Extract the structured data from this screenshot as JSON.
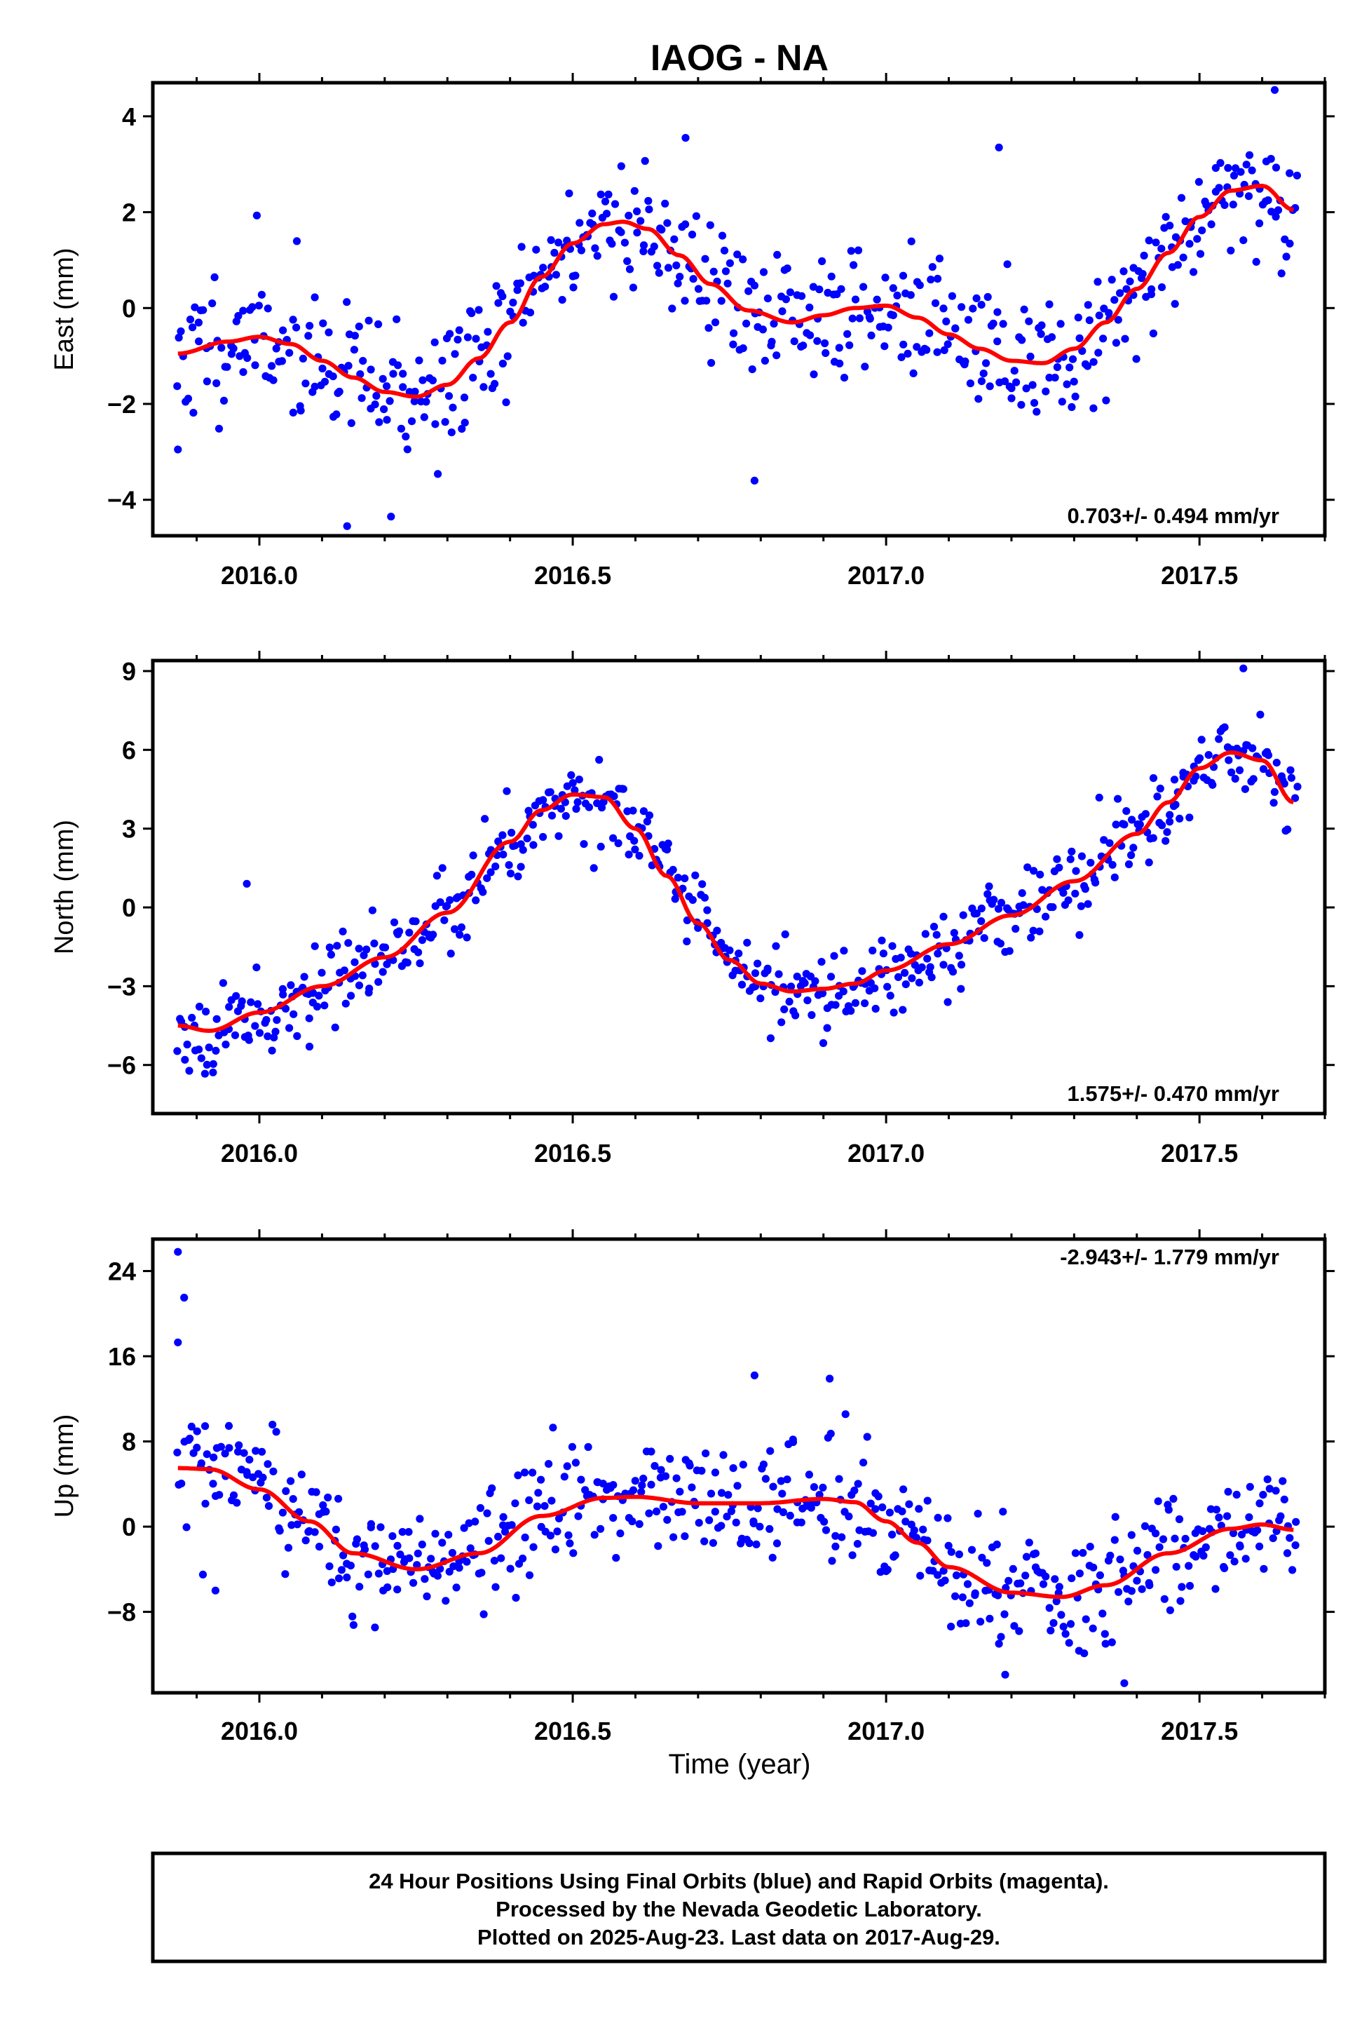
{
  "title": "IAOG - NA",
  "xlabel": "Time (year)",
  "footer": [
    "24 Hour Positions Using Final Orbits (blue) and Rapid Orbits (magenta).",
    "Processed by the Nevada Geodetic Laboratory.",
    "Plotted on 2025-Aug-23. Last data on 2017-Aug-29."
  ],
  "colors": {
    "points": "#0000ff",
    "fit": "#ff0000",
    "axes": "#000000"
  },
  "chart_data": [
    {
      "type": "scatter",
      "ylabel": "East (mm)",
      "rate": "0.703+/- 0.494 mm/yr",
      "xlim": [
        2015.83,
        2017.7
      ],
      "ylim": [
        -4.75,
        4.7
      ],
      "xticks": [
        2016.0,
        2016.5,
        2017.0,
        2017.5
      ],
      "xticklabels": [
        "2016.0",
        "2016.5",
        "2017.0",
        "2017.5"
      ],
      "yticks": [
        -4,
        -2,
        0,
        2,
        4
      ],
      "yticklabels": [
        "−4",
        "−2",
        "0",
        "2",
        "4"
      ],
      "fit": {
        "name": "",
        "x": [
          2015.87,
          2015.95,
          2016.0,
          2016.05,
          2016.1,
          2016.15,
          2016.2,
          2016.25,
          2016.3,
          2016.35,
          2016.4,
          2016.45,
          2016.5,
          2016.55,
          2016.58,
          2016.62,
          2016.67,
          2016.72,
          2016.78,
          2016.85,
          2016.9,
          2016.95,
          2017.0,
          2017.05,
          2017.1,
          2017.15,
          2017.2,
          2017.25,
          2017.3,
          2017.35,
          2017.4,
          2017.45,
          2017.5,
          2017.55,
          2017.6,
          2017.65
        ],
        "y": [
          -0.95,
          -0.7,
          -0.6,
          -0.75,
          -1.1,
          -1.45,
          -1.75,
          -1.85,
          -1.6,
          -1.05,
          -0.3,
          0.65,
          1.35,
          1.75,
          1.8,
          1.65,
          1.1,
          0.5,
          -0.05,
          -0.3,
          -0.15,
          0.0,
          0.05,
          -0.2,
          -0.55,
          -0.85,
          -1.1,
          -1.15,
          -0.85,
          -0.3,
          0.4,
          1.15,
          1.9,
          2.45,
          2.55,
          2.05
        ]
      },
      "seed": 11,
      "noise": 0.95,
      "outliers": [
        [
          2015.87,
          -2.95
        ],
        [
          2016.14,
          -4.55
        ],
        [
          2016.21,
          -4.35
        ],
        [
          2016.79,
          -3.6
        ],
        [
          2017.62,
          4.55
        ],
        [
          2017.18,
          3.35
        ],
        [
          2016.68,
          3.55
        ]
      ]
    },
    {
      "type": "scatter",
      "ylabel": "North (mm)",
      "rate": "1.575+/- 0.470 mm/yr",
      "xlim": [
        2015.83,
        2017.7
      ],
      "ylim": [
        -7.85,
        9.4
      ],
      "xticks": [
        2016.0,
        2016.5,
        2017.0,
        2017.5
      ],
      "xticklabels": [
        "2016.0",
        "2016.5",
        "2017.0",
        "2017.5"
      ],
      "yticks": [
        -6,
        -3,
        0,
        3,
        6,
        9
      ],
      "yticklabels": [
        "−6",
        "−3",
        "0",
        "3",
        "6",
        "9"
      ],
      "fit": {
        "name": "",
        "x": [
          2015.87,
          2015.92,
          2016.0,
          2016.1,
          2016.2,
          2016.3,
          2016.4,
          2016.45,
          2016.5,
          2016.55,
          2016.6,
          2016.65,
          2016.7,
          2016.75,
          2016.8,
          2016.85,
          2016.9,
          2016.95,
          2017.0,
          2017.1,
          2017.2,
          2017.3,
          2017.4,
          2017.45,
          2017.5,
          2017.55,
          2017.6,
          2017.65
        ],
        "y": [
          -4.5,
          -4.7,
          -4.0,
          -3.0,
          -1.9,
          -0.2,
          2.5,
          3.7,
          4.3,
          4.2,
          3.0,
          1.2,
          -0.6,
          -2.0,
          -2.9,
          -3.2,
          -3.1,
          -2.9,
          -2.4,
          -1.4,
          -0.3,
          1.0,
          2.8,
          4.0,
          5.3,
          5.9,
          5.6,
          4.0
        ]
      },
      "seed": 23,
      "noise": 1.0,
      "outliers": [
        [
          2017.57,
          9.1
        ],
        [
          2015.98,
          0.9
        ],
        [
          2016.08,
          -5.3
        ]
      ]
    },
    {
      "type": "scatter",
      "ylabel": "Up (mm)",
      "rate": "-2.943+/- 1.779 mm/yr",
      "xlim": [
        2015.83,
        2017.7
      ],
      "ylim": [
        -15.6,
        27.0
      ],
      "xticks": [
        2016.0,
        2016.5,
        2017.0,
        2017.5
      ],
      "xticklabels": [
        "2016.0",
        "2016.5",
        "2017.0",
        "2017.5"
      ],
      "yticks": [
        -8,
        0,
        8,
        16,
        24
      ],
      "yticklabels": [
        "−8",
        "0",
        "8",
        "16",
        "24"
      ],
      "fit": {
        "name": "",
        "x": [
          2015.87,
          2015.92,
          2016.0,
          2016.08,
          2016.15,
          2016.25,
          2016.35,
          2016.45,
          2016.55,
          2016.6,
          2016.7,
          2016.8,
          2016.9,
          2016.95,
          2017.0,
          2017.05,
          2017.1,
          2017.2,
          2017.28,
          2017.35,
          2017.45,
          2017.55,
          2017.6,
          2017.65
        ],
        "y": [
          5.5,
          5.4,
          3.5,
          0.5,
          -2.5,
          -4.0,
          -2.5,
          1.0,
          2.7,
          2.8,
          2.2,
          2.2,
          2.6,
          2.3,
          0.5,
          -1.5,
          -3.8,
          -6.2,
          -6.6,
          -5.5,
          -2.5,
          -0.2,
          0.2,
          -0.3
        ]
      },
      "seed": 37,
      "noise": 3.6,
      "outliers": [
        [
          2015.87,
          25.8
        ],
        [
          2015.87,
          17.3
        ],
        [
          2015.88,
          21.5
        ],
        [
          2015.91,
          -4.5
        ],
        [
          2015.93,
          -6.0
        ],
        [
          2016.79,
          14.2
        ],
        [
          2016.91,
          13.9
        ],
        [
          2017.19,
          -13.9
        ],
        [
          2017.38,
          -14.7
        ],
        [
          2017.18,
          -11.0
        ]
      ]
    }
  ]
}
